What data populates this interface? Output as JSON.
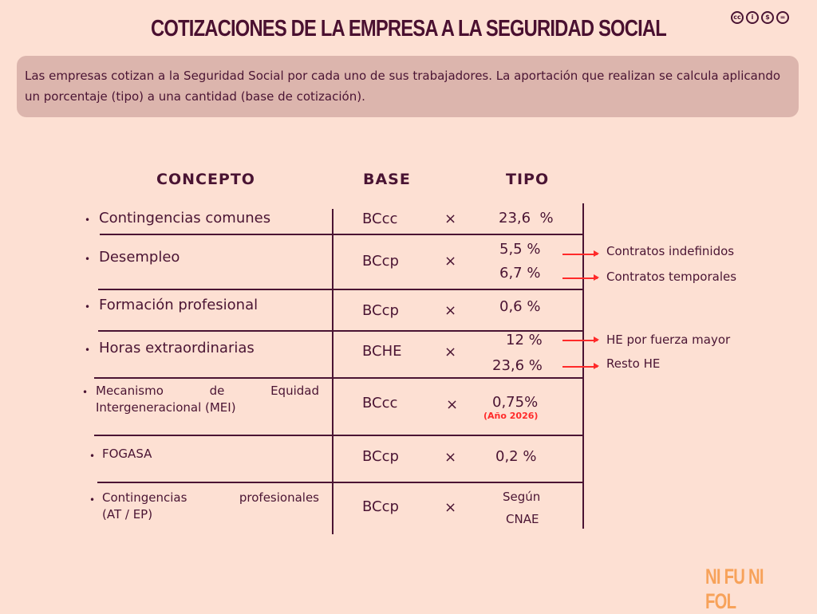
{
  "title": "COTIZACIONES DE LA EMPRESA A LA SEGURIDAD SOCIAL",
  "license_icons": [
    "cc-icon",
    "by-icon",
    "nc-icon",
    "nd-icon"
  ],
  "license_text": {
    "cc": "cc",
    "by": "i",
    "nc": "$",
    "nd": "="
  },
  "intro": "Las empresas cotizan a la Seguridad Social por cada uno de sus trabajadores. La aportación que realizan se calcula aplicando un porcentaje (tipo) a una cantidad (base de cotización).",
  "headers": {
    "concepto": "CONCEPTO",
    "base": "BASE",
    "tipo": "TIPO"
  },
  "bullet": "•",
  "times": "×",
  "rows": [
    {
      "concepto": "Contingencias comunes",
      "base": "BCcc",
      "tipo": "23,6  %"
    },
    {
      "concepto": "Desempleo",
      "base": "BCcp",
      "tipo": [
        "5,5 %",
        "6,7 %"
      ],
      "notes": [
        "Contratos indefinidos",
        "Contratos temporales"
      ]
    },
    {
      "concepto": "Formación profesional",
      "base": "BCcp",
      "tipo": "0,6 %"
    },
    {
      "concepto": "Horas extraordinarias",
      "base": "BCHE",
      "tipo": [
        "12 %",
        "23,6 %"
      ],
      "notes": [
        "HE por fuerza mayor",
        "Resto HE"
      ]
    },
    {
      "concepto": [
        "Mecanismo de Equidad",
        "Intergeneracional (MEI)"
      ],
      "base": "BCcc",
      "tipo": "0,75%",
      "tipo_note": "(Año 2026)"
    },
    {
      "concepto": "FOGASA",
      "base": "BCcp",
      "tipo": "0,2 %"
    },
    {
      "concepto": [
        "Contingencias profesionales",
        "(AT / EP)"
      ],
      "base": "BCcp",
      "tipo": [
        "Según",
        "CNAE"
      ]
    }
  ],
  "brand": "NI FU NI FOL",
  "colors": {
    "background": "#fde0d3",
    "text": "#4a1433",
    "box": "#dcb5ad",
    "accent": "#ff2a2a",
    "brand": "#f7a25a"
  }
}
